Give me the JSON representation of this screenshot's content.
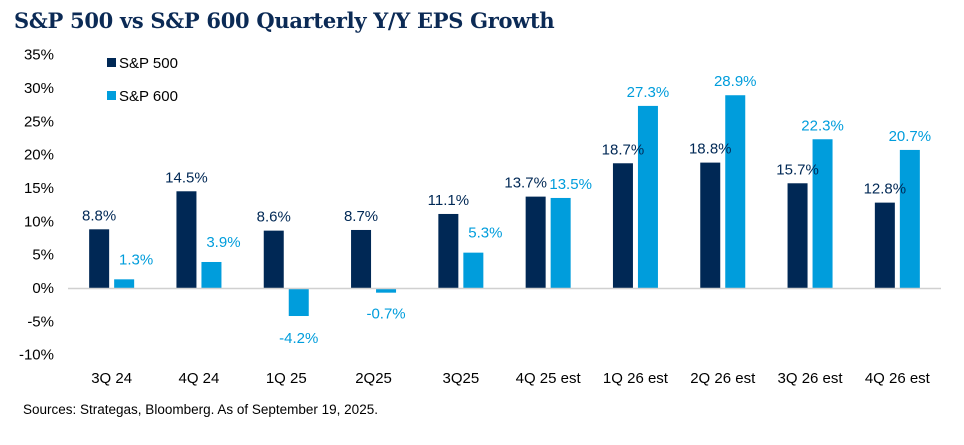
{
  "title": "S&P 500 vs S&P 600 Quarterly Y/Y EPS Growth",
  "source": "Sources: Strategas, Bloomberg. As of September 19, 2025.",
  "colors": {
    "sp500": "#002855",
    "sp600": "#009ddc",
    "title": "#0b2a55",
    "axis": "#d0d0d0"
  },
  "chart_data": {
    "type": "bar",
    "title": "S&P 500 vs S&P 600 Quarterly Y/Y EPS Growth",
    "xlabel": "",
    "ylabel": "",
    "categories": [
      "3Q 24",
      "4Q 24",
      "1Q 25",
      "2Q25",
      "3Q25",
      "4Q 25 est",
      "1Q 26 est",
      "2Q 26 est",
      "3Q 26 est",
      "4Q 26 est"
    ],
    "series": [
      {
        "name": "S&P 500",
        "color": "#002855",
        "values": [
          8.8,
          14.5,
          8.6,
          8.7,
          11.1,
          13.7,
          18.7,
          18.8,
          15.7,
          12.8
        ],
        "labels": [
          "8.8%",
          "14.5%",
          "8.6%",
          "8.7%",
          "11.1%",
          "13.7%",
          "18.7%",
          "18.8%",
          "15.7%",
          "12.8%"
        ]
      },
      {
        "name": "S&P 600",
        "color": "#009ddc",
        "values": [
          1.3,
          3.9,
          -4.2,
          -0.7,
          5.3,
          13.5,
          27.3,
          28.9,
          22.3,
          20.7
        ],
        "labels": [
          "1.3%",
          "3.9%",
          "-4.2%",
          "-0.7%",
          "5.3%",
          "13.5%",
          "27.3%",
          "28.9%",
          "22.3%",
          "20.7%"
        ]
      }
    ],
    "ylim": [
      -10,
      35
    ],
    "yticks": [
      35,
      30,
      25,
      20,
      15,
      10,
      5,
      0,
      -5,
      -10
    ],
    "ytick_labels": [
      "35%",
      "30%",
      "25%",
      "20%",
      "15%",
      "10%",
      "5%",
      "0%",
      "-5%",
      "-10%"
    ],
    "grid": false,
    "legend": {
      "position": "top-left",
      "entries": [
        "S&P 500",
        "S&P 600"
      ]
    }
  }
}
